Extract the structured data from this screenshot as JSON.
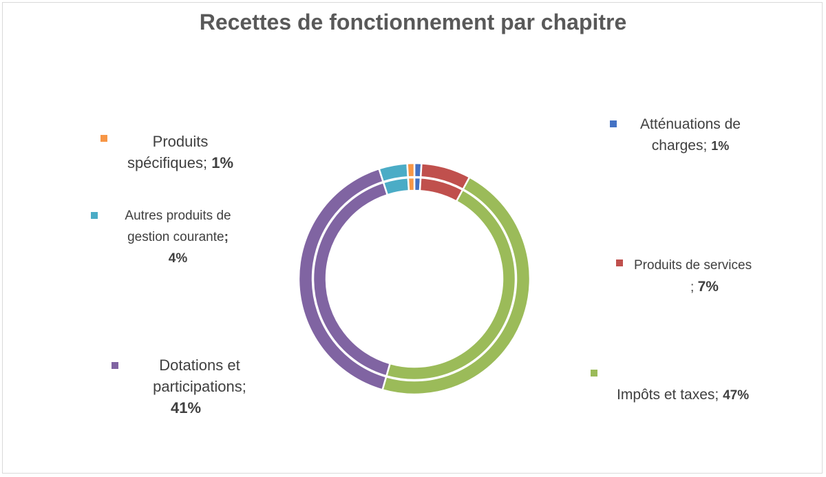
{
  "chart_data": {
    "type": "pie",
    "subtype": "doughnut-two-ring",
    "title": "Recettes de fonctionnement par chapitre",
    "separator": ";",
    "categories": [
      "Atténuations de charges",
      "Produits de services",
      "Impôts et taxes",
      "Dotations et participations",
      "Autres produits de gestion courante",
      "Produits spécifiques"
    ],
    "values": [
      1,
      7,
      47,
      41,
      4,
      1
    ],
    "labels": [
      "1%",
      "7%",
      "47%",
      "41%",
      "4%",
      "1%"
    ],
    "colors": [
      "#4472c4",
      "#c0504d",
      "#9bbb59",
      "#8064a2",
      "#4bacc6",
      "#f79646"
    ],
    "rings": 2,
    "legend": "data-labels-around"
  }
}
